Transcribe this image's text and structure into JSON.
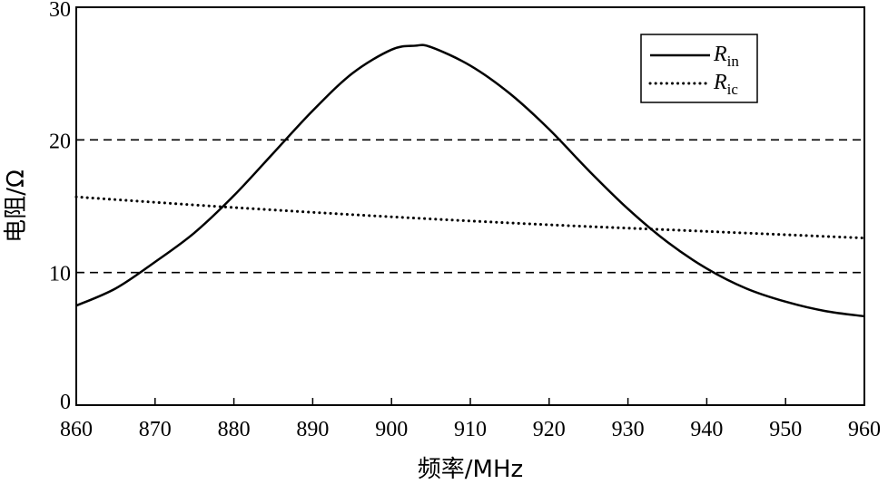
{
  "chart_data": {
    "type": "line",
    "xlabel": "频率/MHz",
    "ylabel": "电阻/Ω",
    "xlim": [
      860,
      960
    ],
    "ylim": [
      0,
      30
    ],
    "xticks": [
      860,
      870,
      880,
      890,
      900,
      910,
      920,
      930,
      940,
      950,
      960
    ],
    "yticks": [
      0,
      10,
      20,
      30
    ],
    "reference_lines": [
      10,
      20
    ],
    "legend_position": "top-right",
    "series": [
      {
        "name": "R_in",
        "legend_main": "R",
        "legend_sub": "in",
        "style": "solid",
        "x": [
          860,
          865,
          870,
          875,
          880,
          885,
          890,
          895,
          900,
          903,
          905,
          910,
          915,
          920,
          925,
          930,
          935,
          940,
          945,
          950,
          955,
          960
        ],
        "y": [
          7.5,
          8.8,
          10.8,
          13.0,
          15.8,
          19.0,
          22.2,
          25.0,
          26.8,
          27.1,
          27.0,
          25.6,
          23.5,
          20.8,
          17.7,
          14.8,
          12.3,
          10.3,
          8.8,
          7.8,
          7.1,
          6.7
        ]
      },
      {
        "name": "R_ic",
        "legend_main": "R",
        "legend_sub": "ic",
        "style": "dotted",
        "x": [
          860,
          880,
          900,
          920,
          940,
          960
        ],
        "y": [
          15.7,
          14.9,
          14.2,
          13.6,
          13.1,
          12.6
        ]
      }
    ]
  }
}
